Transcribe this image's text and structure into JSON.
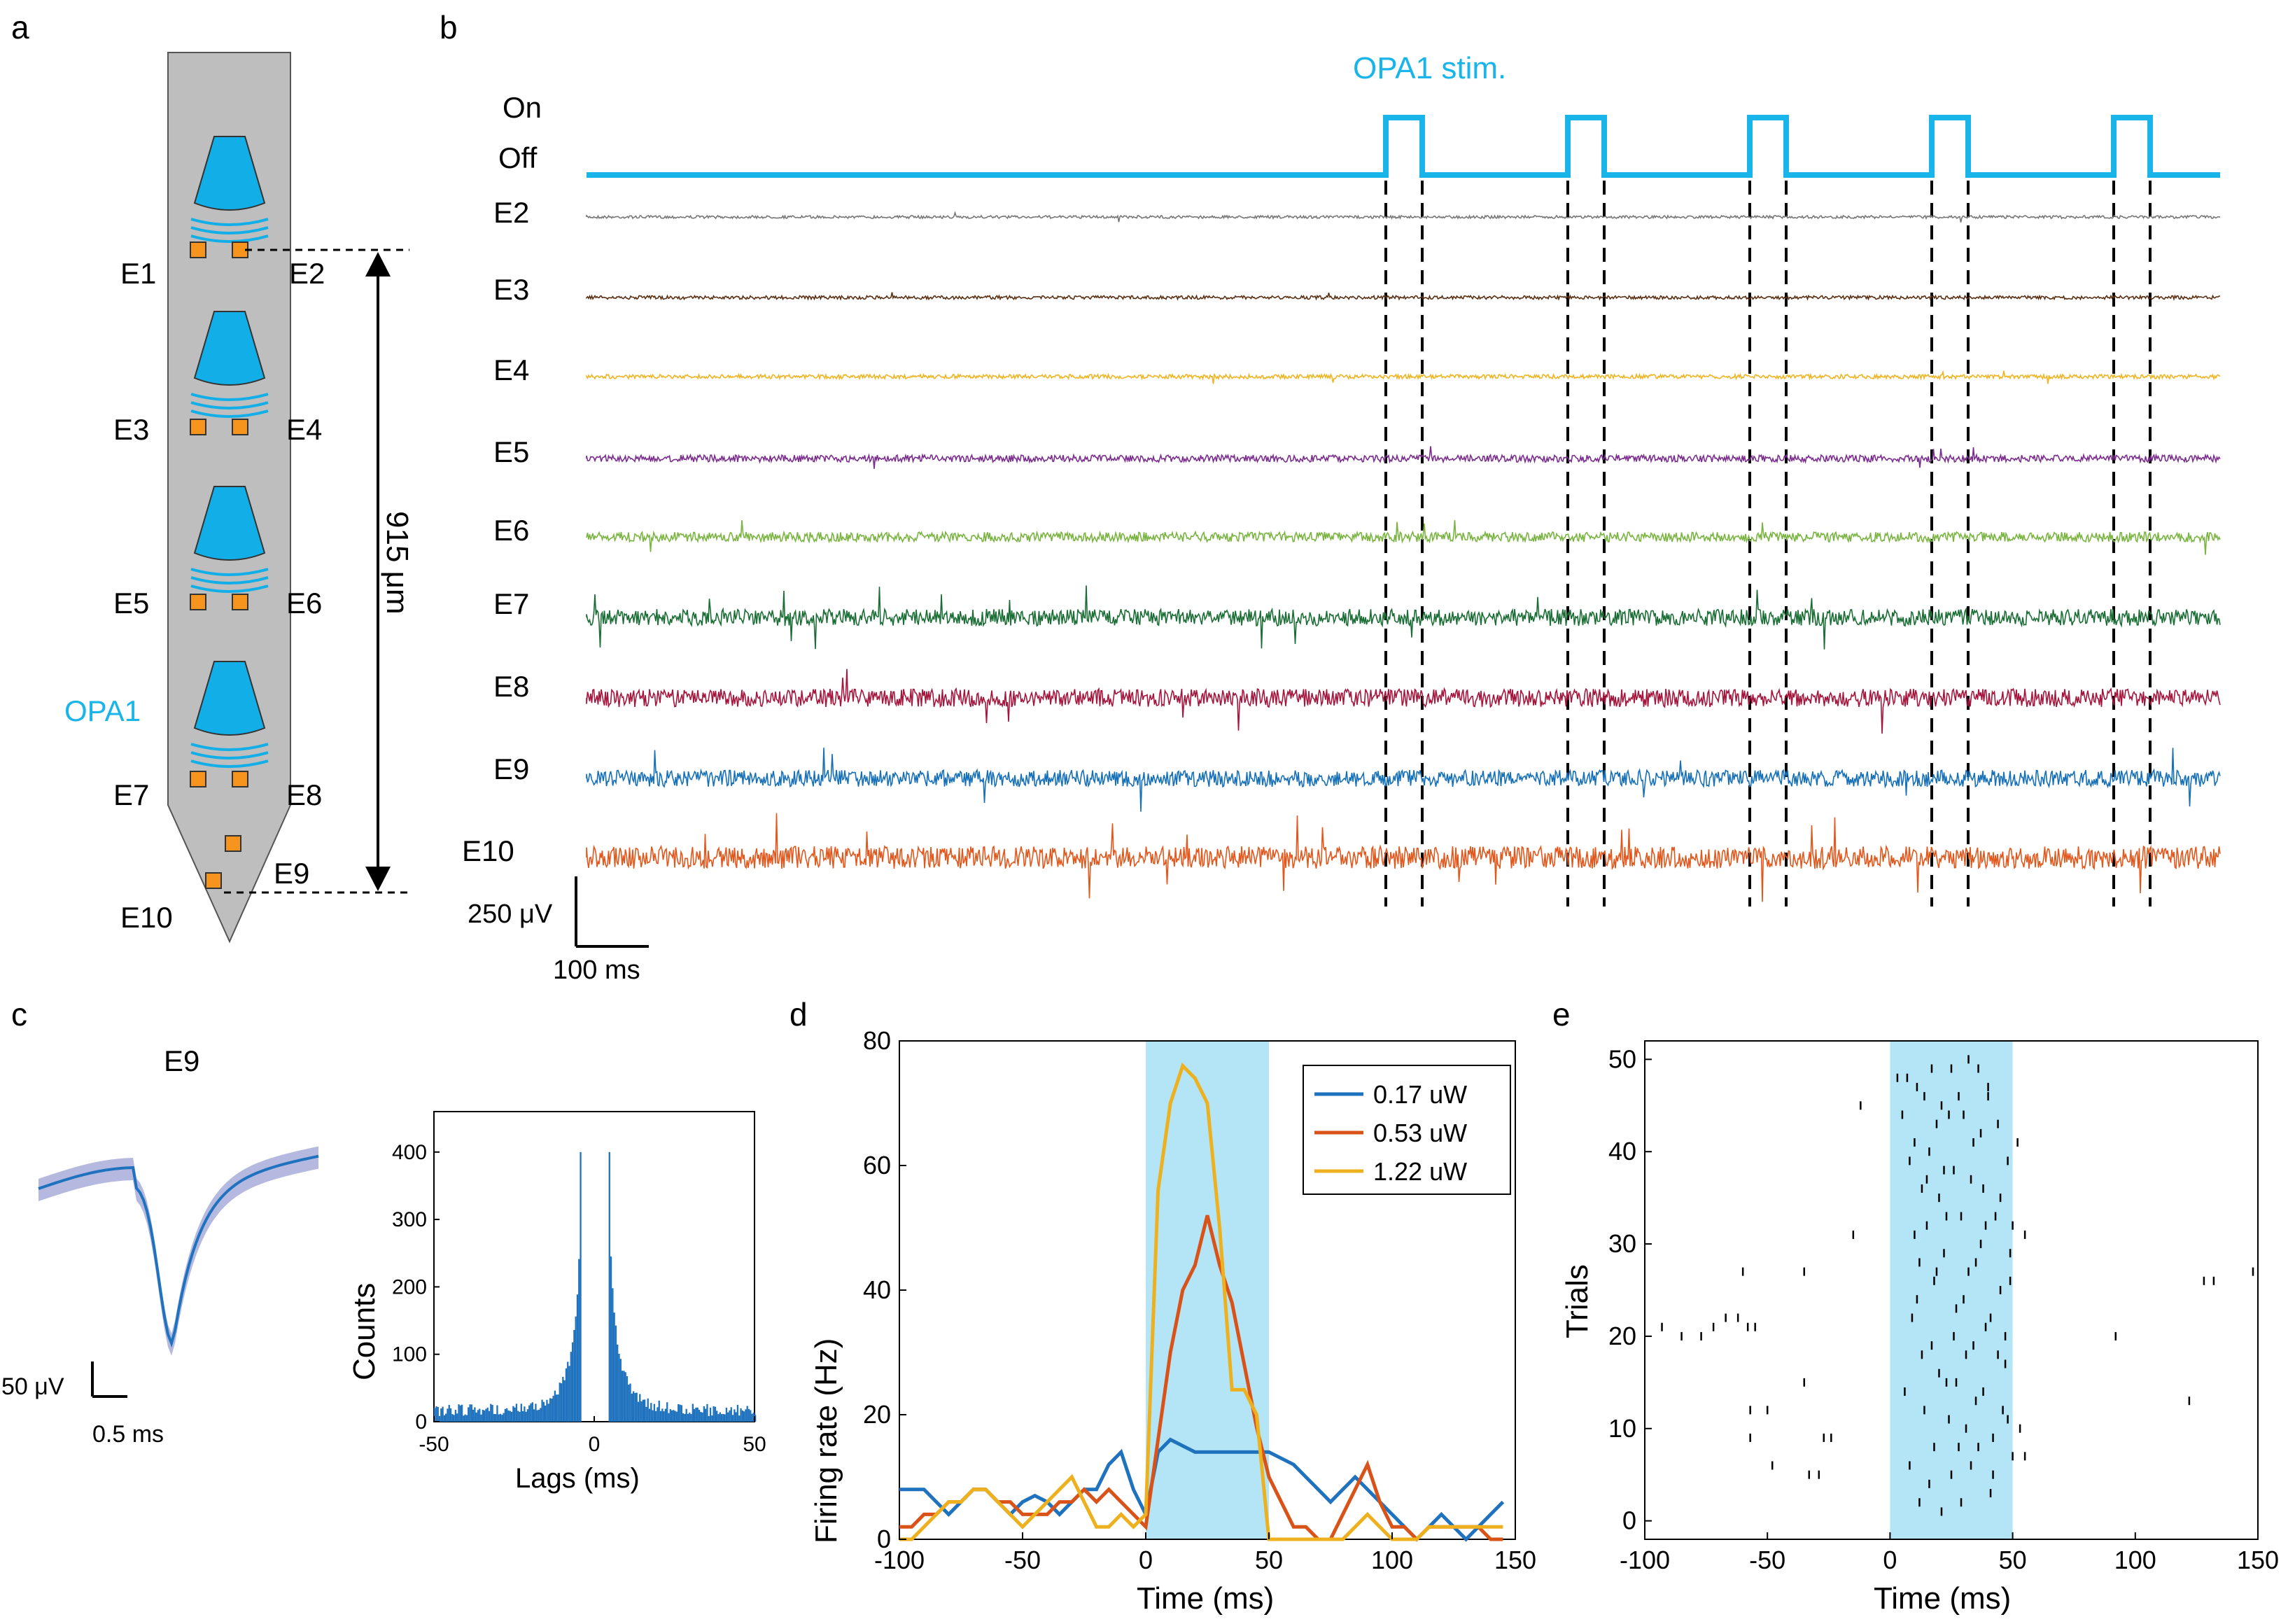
{
  "colors": {
    "probe": "#bebebe",
    "led": "#11aee8",
    "pad": "#f7941d",
    "stim": "#18b4ea",
    "shade": "#b3e5f6",
    "blue": "#1f72bd",
    "orange": "#d95319",
    "yellow": "#edb120",
    "waveband": "#b5b9e0"
  },
  "panel_a": {
    "letter": "a",
    "electrodes": [
      "E1",
      "E2",
      "E3",
      "E4",
      "E5",
      "E6",
      "OPA1",
      "E7",
      "E8",
      "E9",
      "E10"
    ],
    "dimension": "915 μm"
  },
  "panel_b": {
    "letter": "b",
    "stim_title": "OPA1 stim.",
    "on_label": "On",
    "off_label": "Off",
    "channels": [
      {
        "name": "E2",
        "color": "#777777",
        "amp": 2
      },
      {
        "name": "E3",
        "color": "#5b2f12",
        "amp": 2.5
      },
      {
        "name": "E4",
        "color": "#efb422",
        "amp": 3
      },
      {
        "name": "E5",
        "color": "#7b2d8e",
        "amp": 5
      },
      {
        "name": "E6",
        "color": "#79b440",
        "amp": 7
      },
      {
        "name": "E7",
        "color": "#1a6e35",
        "amp": 12
      },
      {
        "name": "E8",
        "color": "#a5163d",
        "amp": 13
      },
      {
        "name": "E9",
        "color": "#1670b8",
        "amp": 12
      },
      {
        "name": "E10",
        "color": "#e1571c",
        "amp": 16
      }
    ],
    "pulse_start_ms": [
      0,
      100,
      200,
      300,
      400
    ],
    "pulse_width_ms": 20,
    "scale_v": "250 μV",
    "scale_h": "100 ms"
  },
  "panel_c": {
    "letter": "c",
    "title": "E9",
    "scale_v": "50 μV",
    "scale_h": "0.5 ms",
    "ylabel": "Counts",
    "xlabel": "Lags (ms)",
    "xticks": [
      "-50",
      "0",
      "50"
    ],
    "yticks": [
      "0",
      "100",
      "200",
      "300",
      "400"
    ]
  },
  "panel_d": {
    "letter": "d",
    "chart_data": {
      "type": "line",
      "xlabel": "Time (ms)",
      "ylabel": "Firing rate (Hz)",
      "xlim": [
        -100,
        150
      ],
      "ylim": [
        0,
        80
      ],
      "xticks": [
        "-100",
        "-50",
        "0",
        "50",
        "100",
        "150"
      ],
      "yticks": [
        "0",
        "20",
        "40",
        "60",
        "80"
      ],
      "stim_window": [
        0,
        50
      ],
      "x": [
        -100,
        -95,
        -90,
        -85,
        -80,
        -75,
        -70,
        -65,
        -60,
        -55,
        -50,
        -45,
        -40,
        -35,
        -30,
        -25,
        -20,
        -15,
        -10,
        -5,
        0,
        5,
        10,
        15,
        20,
        25,
        30,
        35,
        40,
        45,
        50,
        55,
        60,
        65,
        70,
        75,
        80,
        85,
        90,
        95,
        100,
        105,
        110,
        115,
        120,
        125,
        130,
        135,
        140,
        145
      ],
      "series": [
        {
          "name": "0.17 uW",
          "color": "#1f72bd",
          "values": [
            8,
            8,
            8,
            6,
            4,
            6,
            8,
            8,
            6,
            4,
            6,
            7,
            6,
            4,
            6,
            8,
            8,
            12,
            14,
            8,
            4,
            14,
            16,
            15,
            14,
            14,
            14,
            14,
            14,
            14,
            14,
            13,
            12,
            10,
            8,
            6,
            8,
            10,
            8,
            6,
            4,
            2,
            0,
            2,
            4,
            2,
            0,
            2,
            4,
            6
          ]
        },
        {
          "name": "0.53 uW",
          "color": "#d95319",
          "values": [
            2,
            2,
            4,
            4,
            6,
            6,
            8,
            8,
            6,
            6,
            4,
            4,
            4,
            6,
            6,
            8,
            6,
            8,
            6,
            4,
            2,
            16,
            30,
            40,
            44,
            52,
            44,
            38,
            28,
            18,
            10,
            6,
            2,
            2,
            0,
            0,
            4,
            8,
            12,
            6,
            2,
            2,
            0,
            2,
            2,
            2,
            2,
            2,
            0,
            0
          ]
        },
        {
          "name": "1.22 uW",
          "color": "#edb120",
          "values": [
            0,
            0,
            2,
            4,
            6,
            6,
            8,
            8,
            6,
            4,
            2,
            4,
            6,
            8,
            10,
            6,
            2,
            2,
            4,
            2,
            4,
            56,
            70,
            76,
            74,
            70,
            50,
            24,
            24,
            20,
            0,
            0,
            0,
            0,
            0,
            0,
            0,
            2,
            4,
            2,
            0,
            0,
            0,
            2,
            2,
            2,
            2,
            2,
            2,
            2
          ]
        }
      ]
    }
  },
  "panel_e": {
    "letter": "e",
    "chart_data": {
      "type": "scatter",
      "xlabel": "Time (ms)",
      "ylabel": "Trials",
      "xlim": [
        -100,
        150
      ],
      "ylim": [
        -2,
        52
      ],
      "xticks": [
        "-100",
        "-50",
        "0",
        "50",
        "100",
        "150"
      ],
      "yticks": [
        "0",
        "10",
        "20",
        "30",
        "40",
        "50"
      ],
      "stim_window": [
        0,
        50
      ],
      "spikes": [
        [
          -93,
          21
        ],
        [
          -85,
          20
        ],
        [
          -77,
          20
        ],
        [
          -72,
          21
        ],
        [
          -67,
          22
        ],
        [
          -62,
          22
        ],
        [
          -60,
          27
        ],
        [
          -58,
          21
        ],
        [
          -55,
          21
        ],
        [
          -57,
          12
        ],
        [
          -57,
          9
        ],
        [
          -50,
          12
        ],
        [
          -48,
          6
        ],
        [
          -35,
          15
        ],
        [
          -35,
          27
        ],
        [
          -33,
          5
        ],
        [
          -29,
          5
        ],
        [
          -27,
          9
        ],
        [
          -24,
          9
        ],
        [
          -15,
          31
        ],
        [
          -12,
          45
        ],
        [
          3,
          48
        ],
        [
          5,
          44
        ],
        [
          7,
          48
        ],
        [
          8,
          39
        ],
        [
          10,
          41
        ],
        [
          11,
          24
        ],
        [
          12,
          28
        ],
        [
          13,
          36
        ],
        [
          14,
          46
        ],
        [
          15,
          32
        ],
        [
          16,
          40
        ],
        [
          17,
          19
        ],
        [
          18,
          26
        ],
        [
          19,
          43
        ],
        [
          20,
          35
        ],
        [
          21,
          45
        ],
        [
          22,
          29
        ],
        [
          23,
          15
        ],
        [
          24,
          11
        ],
        [
          25,
          49
        ],
        [
          26,
          38
        ],
        [
          27,
          23
        ],
        [
          28,
          8
        ],
        [
          29,
          33
        ],
        [
          30,
          44
        ],
        [
          31,
          18
        ],
        [
          32,
          27
        ],
        [
          33,
          6
        ],
        [
          34,
          41
        ],
        [
          35,
          13
        ],
        [
          36,
          49
        ],
        [
          37,
          30
        ],
        [
          38,
          36
        ],
        [
          39,
          21
        ],
        [
          40,
          46
        ],
        [
          41,
          3
        ],
        [
          42,
          9
        ],
        [
          43,
          33
        ],
        [
          44,
          43
        ],
        [
          45,
          25
        ],
        [
          46,
          12
        ],
        [
          47,
          17
        ],
        [
          48,
          39
        ],
        [
          49,
          29
        ],
        [
          50,
          7
        ],
        [
          6,
          14
        ],
        [
          8,
          6
        ],
        [
          9,
          22
        ],
        [
          10,
          31
        ],
        [
          11,
          47
        ],
        [
          12,
          2
        ],
        [
          13,
          18
        ],
        [
          14,
          12
        ],
        [
          15,
          37
        ],
        [
          16,
          4
        ],
        [
          17,
          49
        ],
        [
          18,
          8
        ],
        [
          19,
          27
        ],
        [
          20,
          16
        ],
        [
          21,
          1
        ],
        [
          22,
          38
        ],
        [
          23,
          33
        ],
        [
          24,
          44
        ],
        [
          25,
          5
        ],
        [
          26,
          20
        ],
        [
          27,
          15
        ],
        [
          28,
          46
        ],
        [
          29,
          2
        ],
        [
          30,
          24
        ],
        [
          31,
          10
        ],
        [
          32,
          50
        ],
        [
          33,
          37
        ],
        [
          34,
          19
        ],
        [
          35,
          28
        ],
        [
          36,
          8
        ],
        [
          37,
          42
        ],
        [
          38,
          14
        ],
        [
          39,
          32
        ],
        [
          40,
          47
        ],
        [
          41,
          22
        ],
        [
          42,
          5
        ],
        [
          44,
          18
        ],
        [
          45,
          35
        ],
        [
          47,
          20
        ],
        [
          48,
          11
        ],
        [
          49,
          26
        ],
        [
          50,
          32
        ],
        [
          52,
          41
        ],
        [
          53,
          10
        ],
        [
          55,
          7
        ],
        [
          55,
          31
        ],
        [
          92,
          20
        ],
        [
          122,
          13
        ],
        [
          128,
          26
        ],
        [
          132,
          26
        ],
        [
          148,
          27
        ]
      ]
    }
  }
}
